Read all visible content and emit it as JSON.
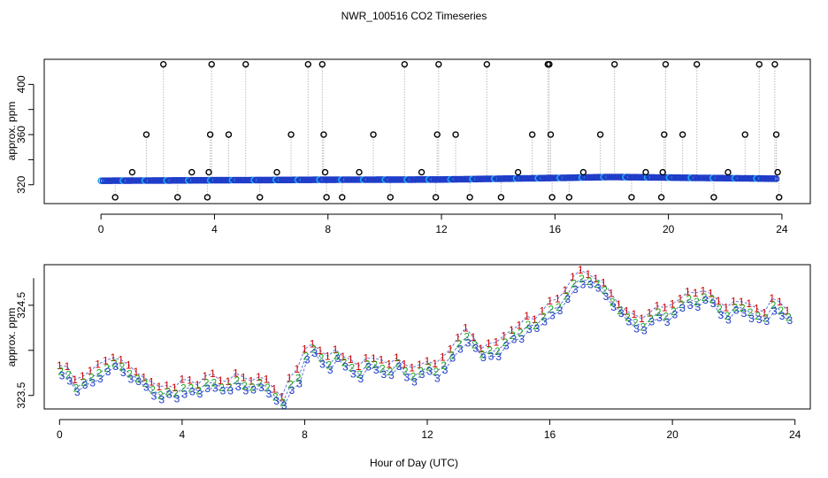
{
  "page_title": "NWR_100516  CO2 Timeseries",
  "chart_data": [
    {
      "type": "scatter",
      "title": "NWR_100516  CO2 Timeseries",
      "xlabel": "",
      "ylabel": "approx. ppm",
      "xlim": [
        -2,
        25
      ],
      "ylim": [
        305,
        420
      ],
      "xticks": [
        0,
        4,
        8,
        12,
        16,
        20,
        24
      ],
      "yticks": [
        320,
        360,
        400
      ],
      "baseline": 323.6,
      "baseline_drift": [
        [
          0,
          323.4
        ],
        [
          8,
          323.8
        ],
        [
          12,
          323.9
        ],
        [
          16,
          324.5
        ],
        [
          18,
          324.9
        ],
        [
          24,
          324.2
        ]
      ],
      "baseline_colors": [
        "#1e3cc8",
        "#22aaee"
      ],
      "spike_color": "#000000",
      "spikes": [
        {
          "x": 0.5,
          "y": 310
        },
        {
          "x": 1.1,
          "y": 330
        },
        {
          "x": 1.6,
          "y": 360
        },
        {
          "x": 2.2,
          "y": 416
        },
        {
          "x": 2.7,
          "y": 310
        },
        {
          "x": 3.2,
          "y": 330
        },
        {
          "x": 3.75,
          "y": 310
        },
        {
          "x": 3.8,
          "y": 330
        },
        {
          "x": 3.85,
          "y": 360
        },
        {
          "x": 3.9,
          "y": 416
        },
        {
          "x": 4.5,
          "y": 360
        },
        {
          "x": 5.1,
          "y": 416
        },
        {
          "x": 5.6,
          "y": 310
        },
        {
          "x": 6.2,
          "y": 330
        },
        {
          "x": 6.7,
          "y": 360
        },
        {
          "x": 7.3,
          "y": 416
        },
        {
          "x": 7.8,
          "y": 416
        },
        {
          "x": 7.85,
          "y": 360
        },
        {
          "x": 7.9,
          "y": 330
        },
        {
          "x": 7.95,
          "y": 310
        },
        {
          "x": 8.5,
          "y": 310
        },
        {
          "x": 9.1,
          "y": 330
        },
        {
          "x": 9.6,
          "y": 360
        },
        {
          "x": 10.2,
          "y": 310
        },
        {
          "x": 10.7,
          "y": 416
        },
        {
          "x": 11.3,
          "y": 330
        },
        {
          "x": 11.8,
          "y": 310
        },
        {
          "x": 11.85,
          "y": 360
        },
        {
          "x": 11.9,
          "y": 416
        },
        {
          "x": 12.5,
          "y": 360
        },
        {
          "x": 13.0,
          "y": 310
        },
        {
          "x": 13.6,
          "y": 416
        },
        {
          "x": 14.1,
          "y": 310
        },
        {
          "x": 14.7,
          "y": 330
        },
        {
          "x": 15.2,
          "y": 360
        },
        {
          "x": 15.75,
          "y": 416
        },
        {
          "x": 15.8,
          "y": 416
        },
        {
          "x": 15.85,
          "y": 360
        },
        {
          "x": 15.9,
          "y": 310
        },
        {
          "x": 16.5,
          "y": 310
        },
        {
          "x": 17.0,
          "y": 330
        },
        {
          "x": 17.6,
          "y": 360
        },
        {
          "x": 18.1,
          "y": 416
        },
        {
          "x": 18.7,
          "y": 310
        },
        {
          "x": 19.2,
          "y": 330
        },
        {
          "x": 19.75,
          "y": 310
        },
        {
          "x": 19.8,
          "y": 330
        },
        {
          "x": 19.85,
          "y": 360
        },
        {
          "x": 19.9,
          "y": 416
        },
        {
          "x": 20.5,
          "y": 360
        },
        {
          "x": 21.0,
          "y": 416
        },
        {
          "x": 21.6,
          "y": 310
        },
        {
          "x": 22.1,
          "y": 330
        },
        {
          "x": 22.7,
          "y": 360
        },
        {
          "x": 23.2,
          "y": 416
        },
        {
          "x": 23.75,
          "y": 416
        },
        {
          "x": 23.8,
          "y": 360
        },
        {
          "x": 23.85,
          "y": 330
        },
        {
          "x": 23.9,
          "y": 310
        }
      ]
    },
    {
      "type": "line",
      "title": "",
      "xlabel": "Hour of Day (UTC)",
      "ylabel": "approx. ppm",
      "xlim": [
        -0.5,
        24.5
      ],
      "ylim": [
        323.35,
        324.95
      ],
      "xticks": [
        0,
        4,
        8,
        12,
        16,
        20,
        24
      ],
      "yticks": [
        323.5,
        324.5
      ],
      "series": [
        {
          "name": "1",
          "marker": "1",
          "color": "#cc0000",
          "offset": 0.08
        },
        {
          "name": "2",
          "marker": "2",
          "color": "#22aa22",
          "offset": 0.0
        },
        {
          "name": "3",
          "marker": "3",
          "color": "#1e3cc8",
          "offset": -0.05
        }
      ],
      "hours": [
        0,
        0.25,
        0.5,
        0.75,
        1,
        1.25,
        1.5,
        1.75,
        2,
        2.25,
        2.5,
        2.75,
        3,
        3.25,
        3.5,
        3.75,
        4,
        4.25,
        4.5,
        4.75,
        5,
        5.25,
        5.5,
        5.75,
        6,
        6.25,
        6.5,
        6.75,
        7,
        7.25,
        7.5,
        7.75,
        8,
        8.25,
        8.5,
        8.75,
        9,
        9.25,
        9.5,
        9.75,
        10,
        10.25,
        10.5,
        10.75,
        11,
        11.25,
        11.5,
        11.75,
        12,
        12.25,
        12.5,
        12.75,
        13,
        13.25,
        13.5,
        13.75,
        14,
        14.25,
        14.5,
        14.75,
        15,
        15.25,
        15.5,
        15.75,
        16,
        16.25,
        16.5,
        16.75,
        17,
        17.25,
        17.5,
        17.75,
        18,
        18.25,
        18.5,
        18.75,
        19,
        19.25,
        19.5,
        19.75,
        20,
        20.25,
        20.5,
        20.75,
        21,
        21.25,
        21.5,
        21.75,
        22,
        22.25,
        22.5,
        22.75,
        23,
        23.25,
        23.5,
        23.75
      ],
      "values": [
        323.75,
        323.72,
        323.6,
        323.65,
        323.68,
        323.75,
        323.82,
        323.85,
        323.8,
        323.75,
        323.7,
        323.62,
        323.55,
        323.52,
        323.55,
        323.5,
        323.58,
        323.6,
        323.55,
        323.62,
        323.65,
        323.6,
        323.58,
        323.65,
        323.62,
        323.6,
        323.62,
        323.58,
        323.5,
        323.42,
        323.6,
        323.7,
        323.95,
        324.0,
        323.9,
        323.85,
        323.95,
        323.85,
        323.8,
        323.75,
        323.85,
        323.82,
        323.8,
        323.78,
        323.85,
        323.75,
        323.72,
        323.78,
        323.8,
        323.75,
        323.85,
        323.95,
        324.05,
        324.15,
        324.08,
        323.95,
        323.98,
        324.0,
        324.1,
        324.15,
        324.18,
        324.3,
        324.28,
        324.35,
        324.45,
        324.5,
        324.6,
        324.72,
        324.8,
        324.78,
        324.72,
        324.65,
        324.55,
        324.45,
        324.35,
        324.3,
        324.28,
        324.35,
        324.4,
        324.38,
        324.45,
        324.5,
        324.55,
        324.55,
        324.6,
        324.55,
        324.45,
        324.4,
        324.48,
        324.45,
        324.42,
        324.4,
        324.35,
        324.48,
        324.45,
        324.38
      ]
    }
  ],
  "colors": {
    "axis": "#000000",
    "spike_line": "#999999",
    "link_line": "#1e3cc8"
  }
}
